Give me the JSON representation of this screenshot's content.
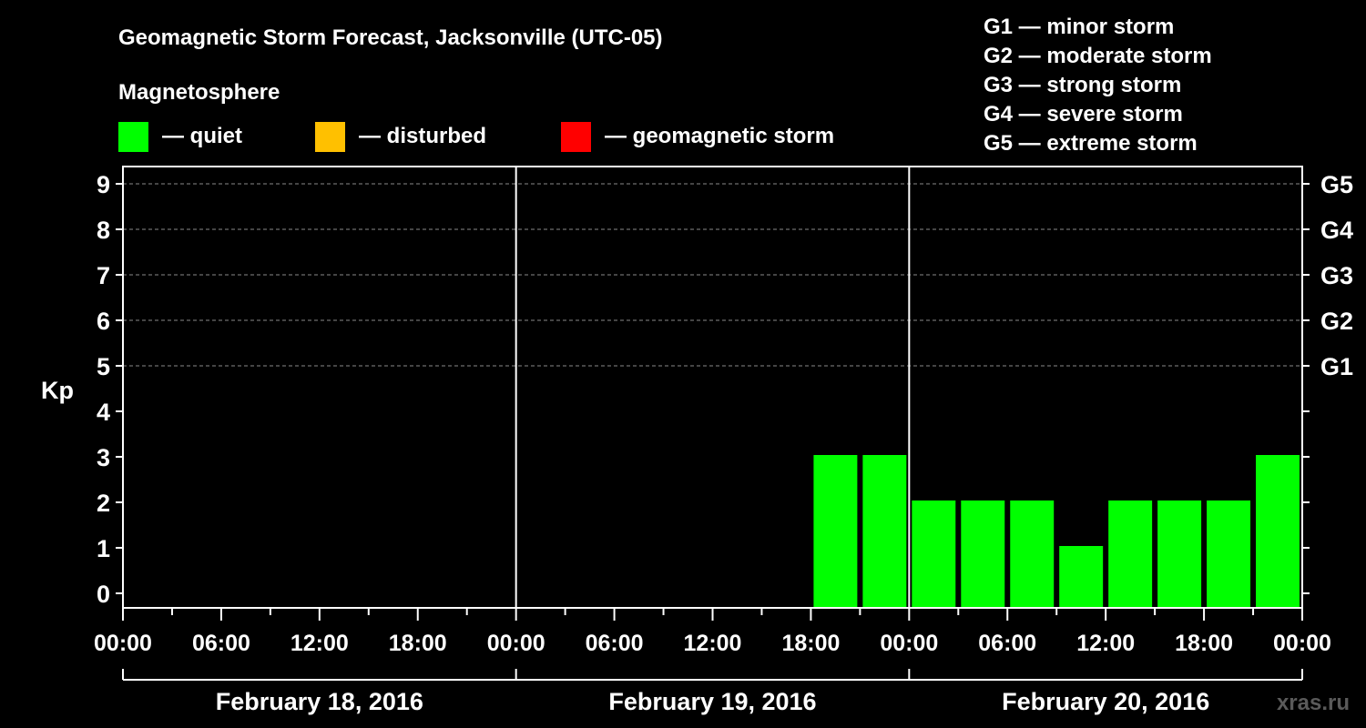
{
  "title": "Geomagnetic Storm Forecast, Jacksonville (UTC-05)",
  "legend": {
    "heading": "Magnetosphere",
    "items": [
      {
        "label": "— quiet",
        "color": "#00ff00"
      },
      {
        "label": "— disturbed",
        "color": "#ffc000"
      },
      {
        "label": "— geomagnetic storm",
        "color": "#ff0000"
      }
    ]
  },
  "storm_scale": [
    "G1 — minor storm",
    "G2 — moderate storm",
    "G3 — strong storm",
    "G4 — severe storm",
    "G5 — extreme storm"
  ],
  "watermark": "xras.ru",
  "chart_data": {
    "type": "bar",
    "ylabel": "Kp",
    "ylim": [
      0,
      9
    ],
    "y_ticks": [
      "0",
      "1",
      "2",
      "3",
      "4",
      "5",
      "6",
      "7",
      "8",
      "9"
    ],
    "right_axis": [
      {
        "kp": 5,
        "label": "G1"
      },
      {
        "kp": 6,
        "label": "G2"
      },
      {
        "kp": 7,
        "label": "G3"
      },
      {
        "kp": 8,
        "label": "G4"
      },
      {
        "kp": 9,
        "label": "G5"
      }
    ],
    "x_tick_labels": [
      "00:00",
      "06:00",
      "12:00",
      "18:00",
      "00:00",
      "06:00",
      "12:00",
      "18:00",
      "00:00",
      "06:00",
      "12:00",
      "18:00",
      "00:00"
    ],
    "dates": [
      "February 18, 2016",
      "February 19, 2016",
      "February 20, 2016"
    ],
    "grid": {
      "horizontal_dashed_at_kp": [
        5,
        6,
        7,
        8,
        9
      ]
    },
    "series": [
      {
        "values": [
          {
            "start": "2016-02-19 18:00",
            "kp": 3,
            "level": "quiet"
          },
          {
            "start": "2016-02-19 21:00",
            "kp": 3,
            "level": "quiet"
          },
          {
            "start": "2016-02-20 00:00",
            "kp": 2,
            "level": "quiet"
          },
          {
            "start": "2016-02-20 03:00",
            "kp": 2,
            "level": "quiet"
          },
          {
            "start": "2016-02-20 06:00",
            "kp": 2,
            "level": "quiet"
          },
          {
            "start": "2016-02-20 09:00",
            "kp": 1,
            "level": "quiet"
          },
          {
            "start": "2016-02-20 12:00",
            "kp": 2,
            "level": "quiet"
          },
          {
            "start": "2016-02-20 15:00",
            "kp": 2,
            "level": "quiet"
          },
          {
            "start": "2016-02-20 18:00",
            "kp": 2,
            "level": "quiet"
          },
          {
            "start": "2016-02-20 21:00",
            "kp": 3,
            "level": "quiet"
          }
        ]
      }
    ]
  }
}
